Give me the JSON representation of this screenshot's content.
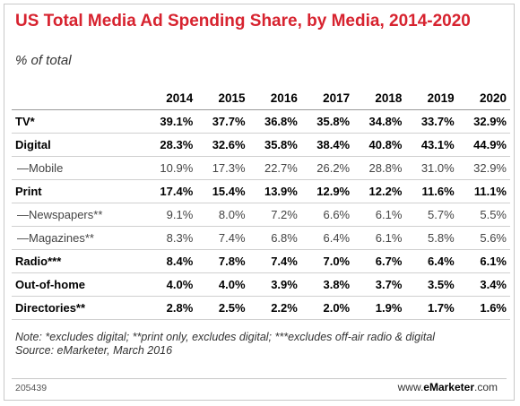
{
  "title": "US Total Media Ad Spending Share, by Media, 2014-2020",
  "subtitle": "% of total",
  "note": "Note: *excludes digital; **print only, excludes digital; ***excludes off-air radio & digital",
  "source": "Source: eMarketer, March 2016",
  "chart_id": "205439",
  "brand": {
    "prefix": "www.",
    "name": "eMarketer",
    "suffix": ".com"
  },
  "chart_data": {
    "type": "table",
    "title": "US Total Media Ad Spending Share, by Media, 2014-2020",
    "subtitle": "% of total",
    "columns": [
      "2014",
      "2015",
      "2016",
      "2017",
      "2018",
      "2019",
      "2020"
    ],
    "rows": [
      {
        "label": "TV*",
        "bold": true,
        "values": [
          "39.1%",
          "37.7%",
          "36.8%",
          "35.8%",
          "34.8%",
          "33.7%",
          "32.9%"
        ]
      },
      {
        "label": "Digital",
        "bold": true,
        "values": [
          "28.3%",
          "32.6%",
          "35.8%",
          "38.4%",
          "40.8%",
          "43.1%",
          "44.9%"
        ]
      },
      {
        "label": "—Mobile",
        "bold": false,
        "values": [
          "10.9%",
          "17.3%",
          "22.7%",
          "26.2%",
          "28.8%",
          "31.0%",
          "32.9%"
        ]
      },
      {
        "label": "Print",
        "bold": true,
        "values": [
          "17.4%",
          "15.4%",
          "13.9%",
          "12.9%",
          "12.2%",
          "11.6%",
          "11.1%"
        ]
      },
      {
        "label": "—Newspapers**",
        "bold": false,
        "values": [
          "9.1%",
          "8.0%",
          "7.2%",
          "6.6%",
          "6.1%",
          "5.7%",
          "5.5%"
        ]
      },
      {
        "label": "—Magazines**",
        "bold": false,
        "values": [
          "8.3%",
          "7.4%",
          "6.8%",
          "6.4%",
          "6.1%",
          "5.8%",
          "5.6%"
        ]
      },
      {
        "label": "Radio***",
        "bold": true,
        "values": [
          "8.4%",
          "7.8%",
          "7.4%",
          "7.0%",
          "6.7%",
          "6.4%",
          "6.1%"
        ]
      },
      {
        "label": "Out-of-home",
        "bold": true,
        "values": [
          "4.0%",
          "4.0%",
          "3.9%",
          "3.8%",
          "3.7%",
          "3.5%",
          "3.4%"
        ]
      },
      {
        "label": "Directories**",
        "bold": true,
        "values": [
          "2.8%",
          "2.5%",
          "2.2%",
          "2.0%",
          "1.9%",
          "1.7%",
          "1.6%"
        ]
      }
    ]
  }
}
